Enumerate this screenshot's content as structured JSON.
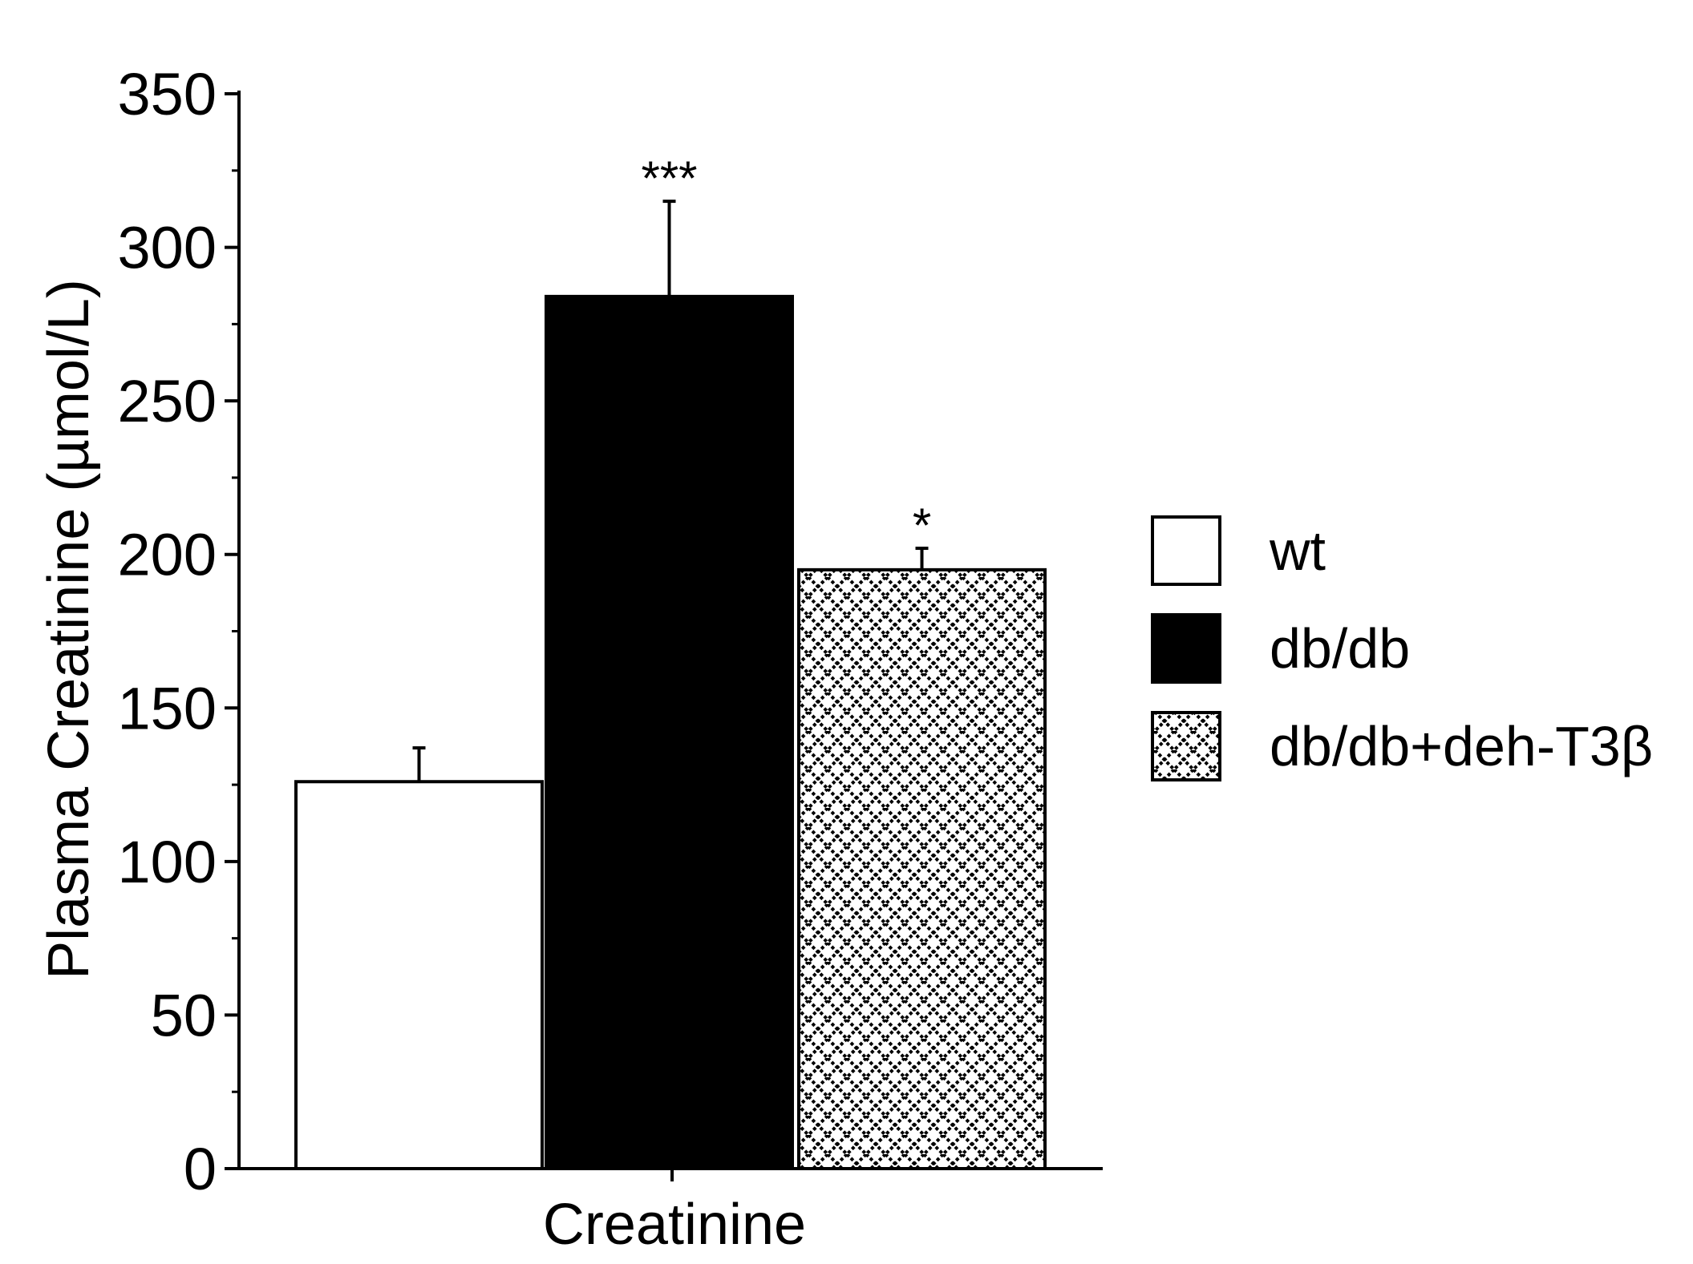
{
  "chart_data": {
    "type": "bar",
    "categories": [
      "Creatinine"
    ],
    "xlabel": "Creatinine",
    "ylabel": "Plasma Creatinine (µmol/L)",
    "ylim": [
      0,
      350
    ],
    "yticks": [
      0,
      50,
      100,
      150,
      200,
      250,
      300,
      350
    ],
    "grid": false,
    "legend_position": "right",
    "series": [
      {
        "name": "wt",
        "values": [
          126
        ],
        "error": [
          11
        ],
        "fill": "white",
        "significance": ""
      },
      {
        "name": "db/db",
        "values": [
          284
        ],
        "error": [
          31
        ],
        "fill": "black",
        "significance": "***"
      },
      {
        "name": "db/db+deh-T3β",
        "values": [
          195
        ],
        "error": [
          7
        ],
        "fill": "crosshatch",
        "significance": "*"
      }
    ]
  }
}
